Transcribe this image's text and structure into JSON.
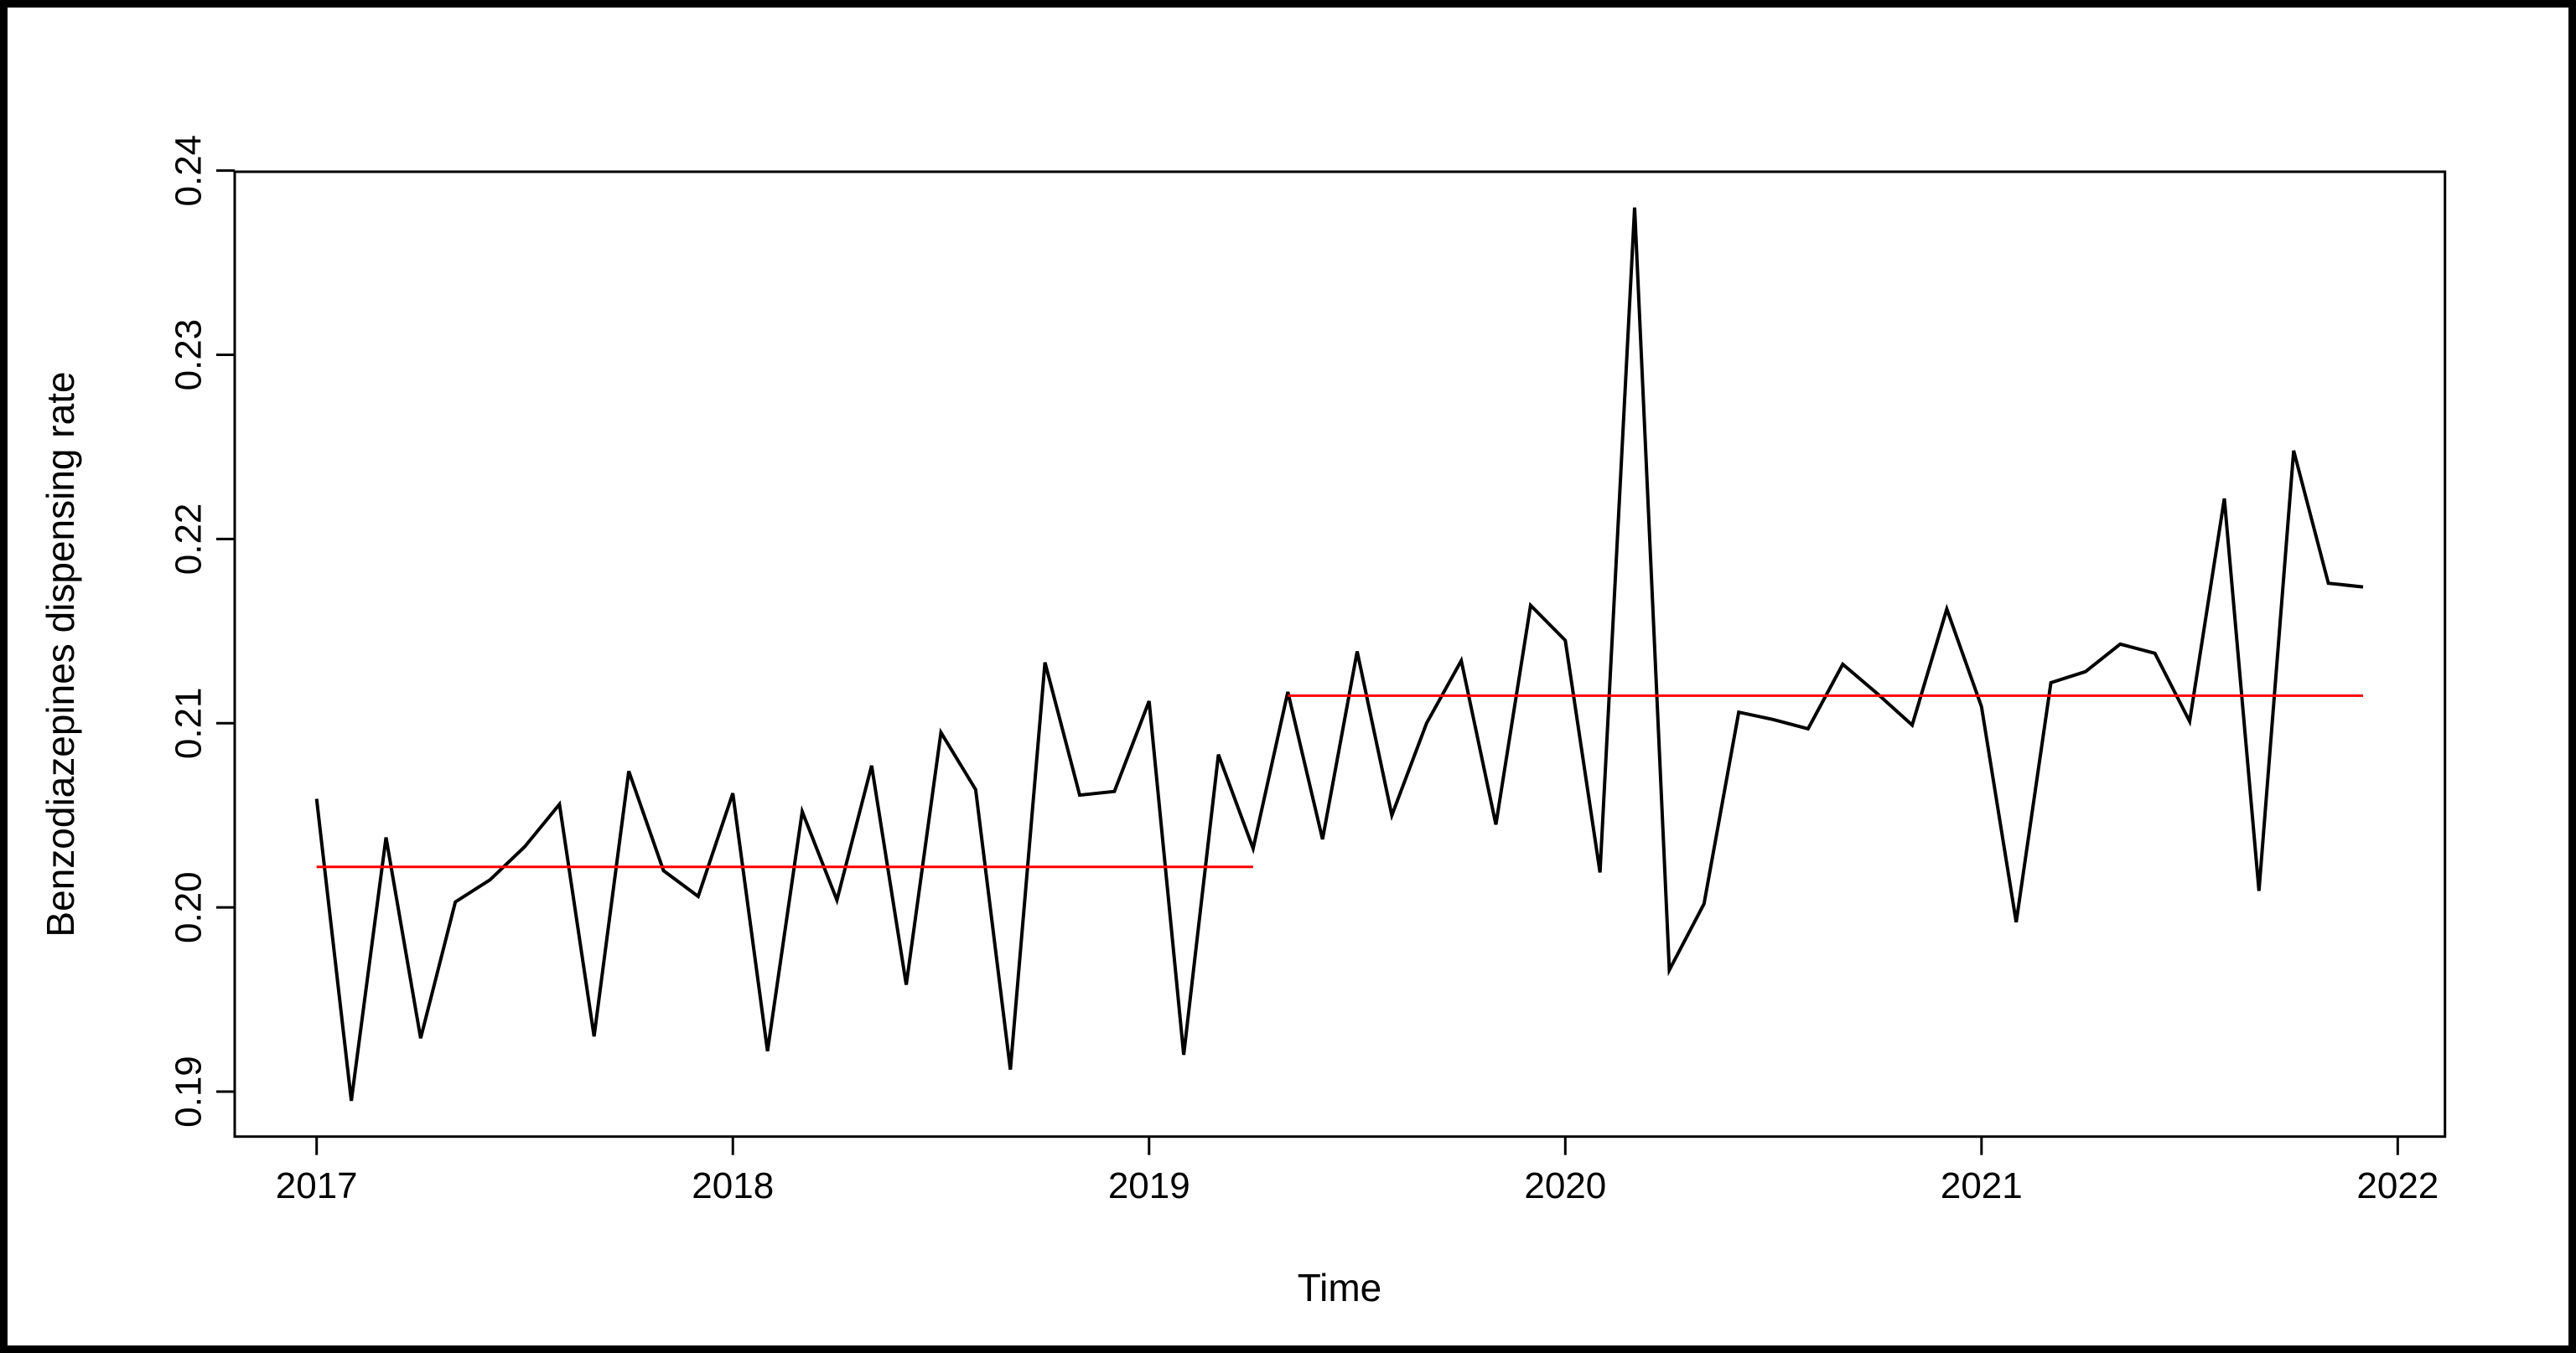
{
  "figure": {
    "xlabel": "Time",
    "ylabel": "Benzodiazepines dispensing rate"
  },
  "chart_data": {
    "type": "line",
    "title": "",
    "xlabel": "Time",
    "ylabel": "Benzodiazepines dispensing rate",
    "x_tick_labels": [
      "2017",
      "2018",
      "2019",
      "2020",
      "2021",
      "2022"
    ],
    "x_tick_values": [
      2017,
      2018,
      2019,
      2020,
      2021,
      2022
    ],
    "y_tick_labels": [
      "0.19",
      "0.20",
      "0.21",
      "0.22",
      "0.23",
      "0.24"
    ],
    "y_tick_values": [
      0.19,
      0.2,
      0.21,
      0.22,
      0.23,
      0.24
    ],
    "x_range": [
      2016.8032,
      2022.1135
    ],
    "y_range": [
      0.18756,
      0.23994
    ],
    "grid": "off",
    "legend": "none",
    "series": [
      {
        "name": "Benzodiazepines dispensing rate (monthly)",
        "start_x": 2017.0,
        "x_step": 0.0833333,
        "frequency": "monthly",
        "values": [
          0.2059,
          0.1895,
          0.2038,
          0.1929,
          0.2003,
          0.2015,
          0.2033,
          0.2056,
          0.193,
          0.2074,
          0.202,
          0.2006,
          0.2062,
          0.1922,
          0.2052,
          0.2004,
          0.2077,
          0.1958,
          0.2095,
          0.2064,
          0.1912,
          0.2133,
          0.2061,
          0.2063,
          0.2112,
          0.192,
          0.2083,
          0.2032,
          0.2117,
          0.2037,
          0.2139,
          0.205,
          0.21,
          0.2134,
          0.2045,
          0.2164,
          0.2145,
          0.2019,
          0.238,
          0.1966,
          0.2002,
          0.2106,
          0.2102,
          0.2097,
          0.2132,
          0.2116,
          0.2099,
          0.2162,
          0.2109,
          0.1992,
          0.2122,
          0.2128,
          0.2143,
          0.2138,
          0.2101,
          0.2222,
          0.2009,
          0.2248,
          0.2176,
          0.2174
        ]
      }
    ],
    "mean_segments": [
      {
        "from_x": 2017.0,
        "to_x": 2019.25,
        "value": 0.2022
      },
      {
        "from_x": 2019.3333,
        "to_x": 2021.9167,
        "value": 0.2115
      }
    ],
    "colors": {
      "series_line": "#000000",
      "mean_line": "#FF0000",
      "axis": "#000000",
      "background": "#FFFFFF"
    }
  }
}
